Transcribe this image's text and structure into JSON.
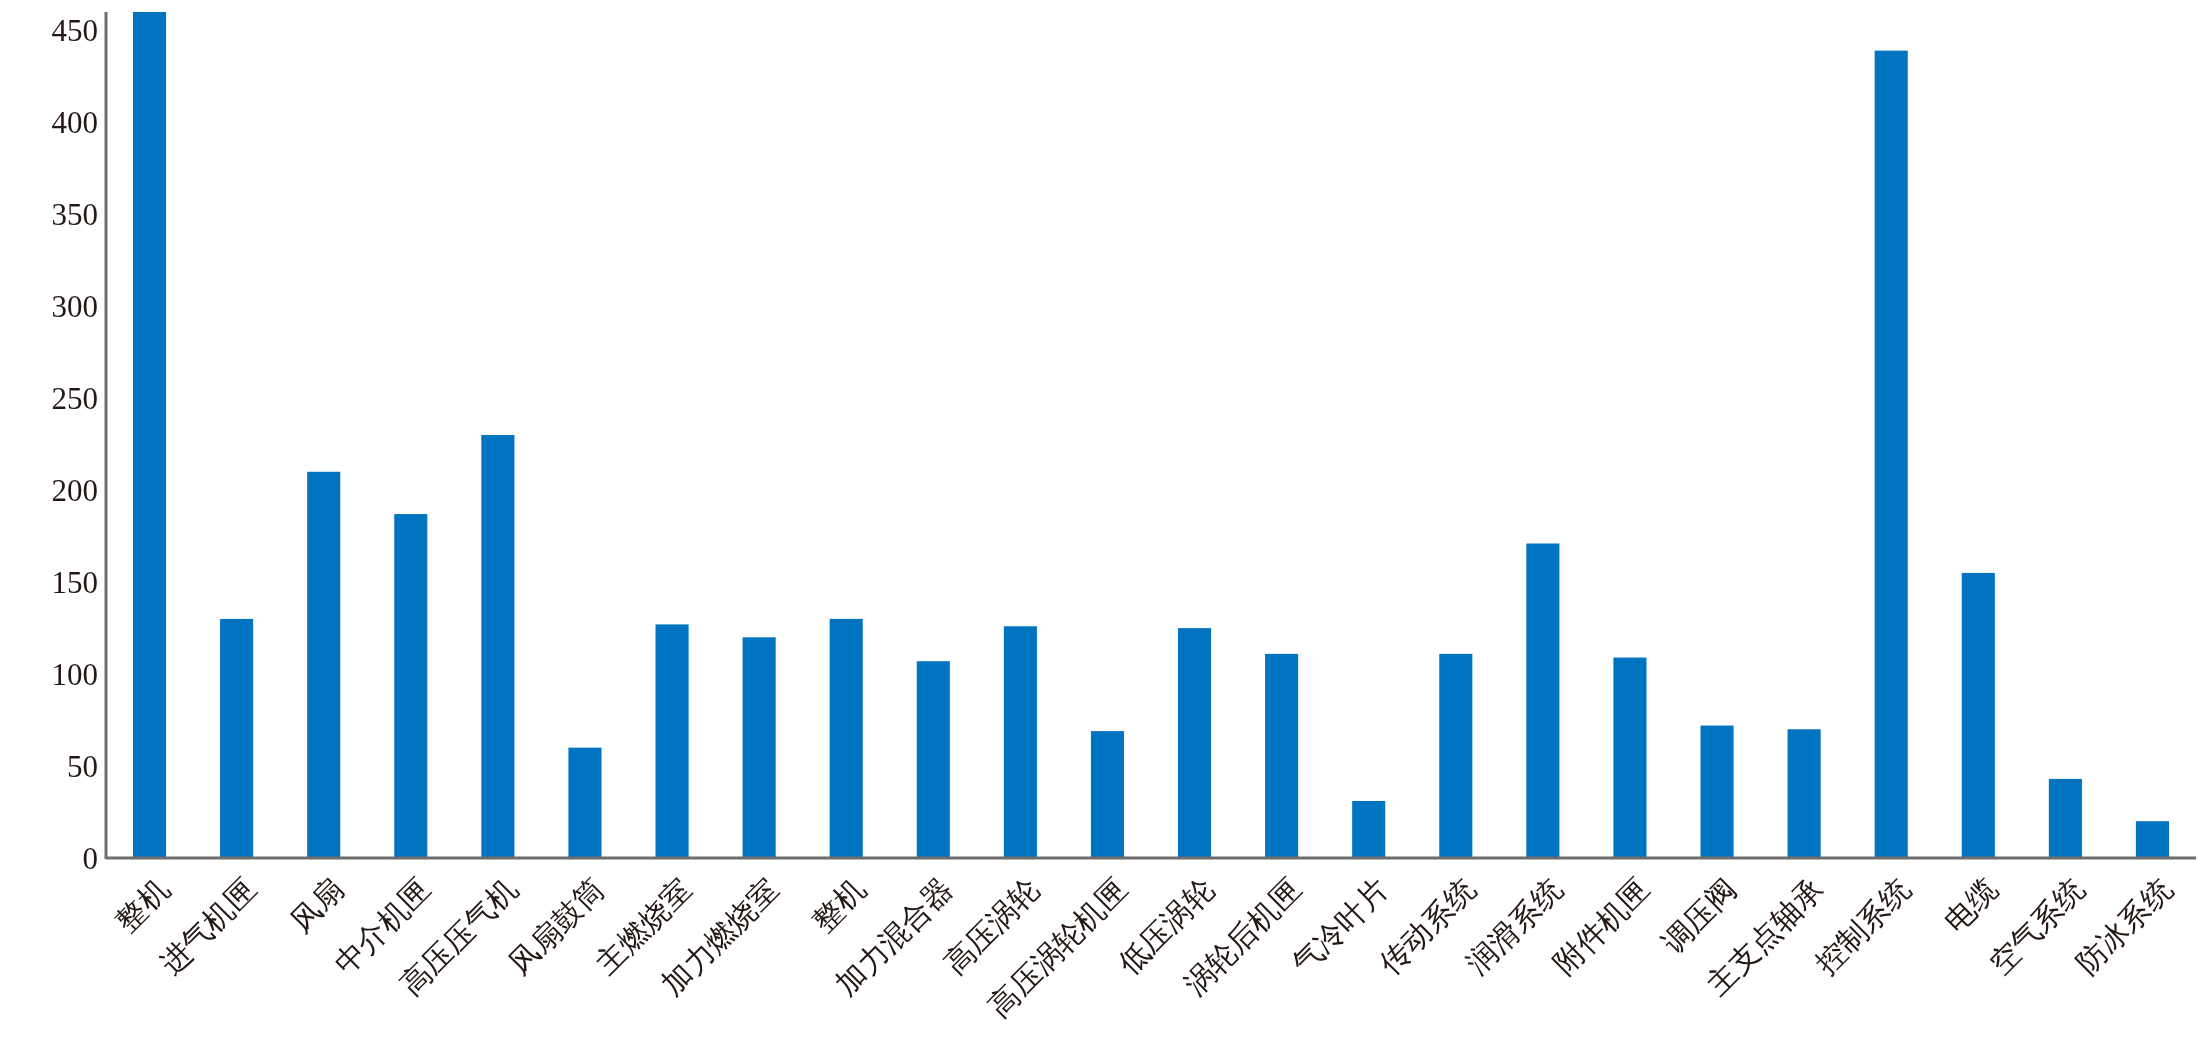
{
  "chart_data": {
    "type": "bar",
    "categories": [
      "整机",
      "进气机匣",
      "风扇",
      "中介机匣",
      "高压压气机",
      "风扇鼓筒",
      "主燃烧室",
      "加力燃烧室",
      "整机",
      "加力混合器",
      "高压涡轮",
      "高压涡轮机匣",
      "低压涡轮",
      "涡轮后机匣",
      "气冷叶片",
      "传动系统",
      "润滑系统",
      "附件机匣",
      "调压阀",
      "主支点轴承",
      "控制系统",
      "电缆",
      "空气系统",
      "防冰系统"
    ],
    "values": [
      460,
      130,
      210,
      187,
      230,
      60,
      127,
      120,
      130,
      107,
      126,
      69,
      125,
      111,
      31,
      111,
      171,
      109,
      72,
      70,
      439,
      155,
      43,
      20
    ],
    "color": "#0074c1",
    "ylim": [
      0,
      460
    ],
    "yticks": [
      0,
      50,
      100,
      150,
      200,
      250,
      300,
      350,
      400,
      450
    ],
    "grid": false
  }
}
